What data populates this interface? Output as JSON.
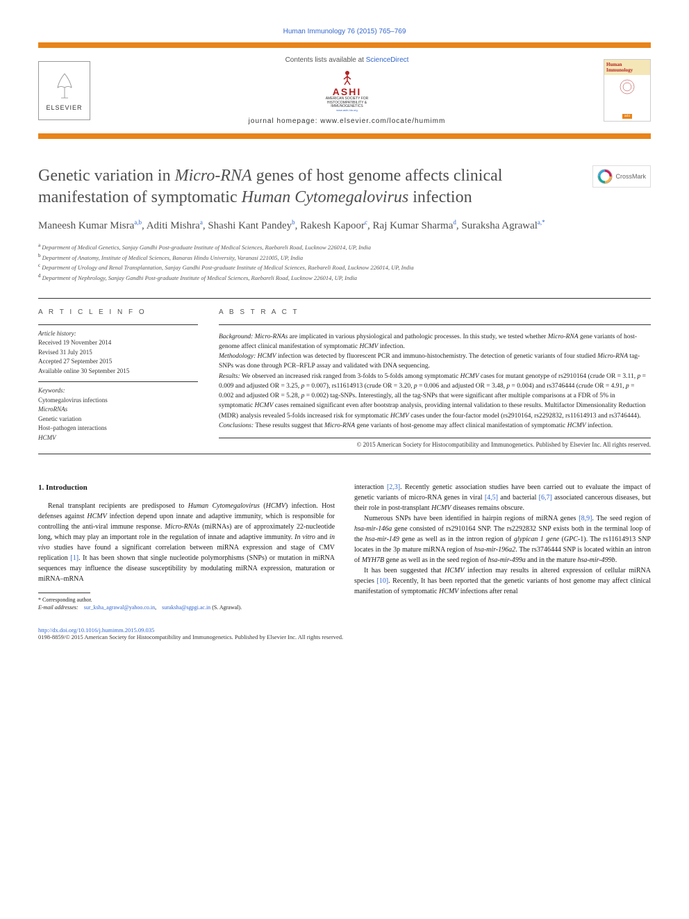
{
  "journal_ref": "Human Immunology 76 (2015) 765–769",
  "header": {
    "contents_prefix": "Contents lists available at ",
    "contents_link": "ScienceDirect",
    "ashi_name": "ASHI",
    "ashi_sub1": "AMERICAN SOCIETY FOR",
    "ashi_sub2": "HISTOCOMPATIBILITY &",
    "ashi_sub3": "IMMUNOGENETICS",
    "ashi_url": "www.ashi-hla.org",
    "homepage_label": "journal homepage: ",
    "homepage_url": "www.elsevier.com/locate/humimm",
    "elsevier_label": "ELSEVIER",
    "cover_title": "Human Immunology",
    "cover_ashi": "ashi"
  },
  "crossmark": "CrossMark",
  "title_html": "Genetic variation in <em>Micro-RNA</em> genes of host genome affects clinical manifestation of symptomatic <em>Human Cytomegalovirus</em> infection",
  "authors_html": "Maneesh Kumar Misra<sup>a,b</sup>, Aditi Mishra<sup>a</sup>, Shashi Kant Pandey<sup>b</sup>, Rakesh Kapoor<sup>c</sup>, Raj Kumar Sharma<sup>d</sup>, Suraksha Agrawal<sup>a,*</sup>",
  "affiliations": [
    {
      "sup": "a",
      "text": "Department of Medical Genetics, Sanjay Gandhi Post-graduate Institute of Medical Sciences, Raebareli Road, Lucknow 226014, UP, India"
    },
    {
      "sup": "b",
      "text": "Department of Anatomy, Institute of Medical Sciences, Banaras Hindu University, Varanasi 221005, UP, India"
    },
    {
      "sup": "c",
      "text": "Department of Urology and Renal Transplantation, Sanjay Gandhi Post-graduate Institute of Medical Sciences, Raebareli Road, Lucknow 226014, UP, India"
    },
    {
      "sup": "d",
      "text": "Department of Nephrology, Sanjay Gandhi Post-graduate Institute of Medical Sciences, Raebareli Road, Lucknow 226014, UP, India"
    }
  ],
  "info_heading": "A R T I C L E   I N F O",
  "history_label": "Article history:",
  "history": [
    "Received 19 November 2014",
    "Revised 31 July 2015",
    "Accepted 27 September 2015",
    "Available online 30 September 2015"
  ],
  "keywords_label": "Keywords:",
  "keywords": [
    "Cytomegalovirus infections",
    "MicroRNAs",
    "Genetic variation",
    "Host–pathogen interactions",
    "HCMV"
  ],
  "abstract_heading": "A B S T R A C T",
  "abstract_html": "<span class='para-label'>Background:</span> <em>Micro-RNAs</em> are implicated in various physiological and pathologic processes. In this study, we tested whether <em>Micro-RNA</em> gene variants of host-genome affect clinical manifestation of symptomatic <em>HCMV</em> infection.<br><span class='para-label'>Methodology:</span> <em>HCMV</em> infection was detected by fluorescent PCR and immuno-histochemistry. The detection of genetic variants of four studied <em>Micro-RNA</em> tag-SNPs was done through PCR–RFLP assay and validated with DNA sequencing.<br><span class='para-label'>Results:</span> We observed an increased risk ranged from 3-folds to 5-folds among symptomatic <em>HCMV</em> cases for mutant genotype of rs2910164 (crude OR = 3.11, <em>p</em> = 0.009 and adjusted OR = 3.25, <em>p</em> = 0.007), rs11614913 (crude OR = 3.20, <em>p</em> = 0.006 and adjusted OR = 3.48, <em>p</em> = 0.004) and rs3746444 (crude OR = 4.91, <em>p</em> = 0.002 and adjusted OR = 5.28, <em>p</em> = 0.002) tag-SNPs. Interestingly, all the tag-SNPs that were significant after multiple comparisons at a FDR of 5% in symptomatic <em>HCMV</em> cases remained significant even after bootstrap analysis, providing internal validation to these results. Multifactor Dimensionality Reduction (MDR) analysis revealed 5-folds increased risk for symptomatic <em>HCMV</em> cases under the four-factor model (rs2910164, rs2292832, rs11614913 and rs3746444).<br><span class='para-label'>Conclusions:</span> These results suggest that <em>Micro-RNA</em> gene variants of host-genome may affect clinical manifestation of symptomatic <em>HCMV</em> infection.",
  "abstract_copyright": "© 2015 American Society for Histocompatibility and Immunogenetics. Published by Elsevier Inc. All rights reserved.",
  "intro_heading": "1. Introduction",
  "intro_col1_html": "Renal transplant recipients are predisposed to <em>Human Cytomegalovirus</em> (<em>HCMV</em>) infection. Host defenses against <em>HCMV</em> infection depend upon innate and adaptive immunity, which is responsible for controlling the anti-viral immune response. <em>Micro-RNAs</em> (miRNAs) are of approximately 22-nucleotide long, which may play an important role in the regulation of innate and adaptive immunity. <em>In vitro</em> and <em>in vivo</em> studies have found a significant correlation between miRNA expression and stage of CMV replication <span class='ref-link'>[1]</span>. It has been shown that single nucleotide polymorphisms (SNPs) or mutation in miRNA sequences may influence the disease susceptibility by modulating miRNA expression, maturation or miRNA–mRNA",
  "intro_col2_p1_html": "interaction <span class='ref-link'>[2,3]</span>. Recently genetic association studies have been carried out to evaluate the impact of genetic variants of micro-RNA genes in viral <span class='ref-link'>[4,5]</span> and bacterial <span class='ref-link'>[6,7]</span> associated cancerous diseases, but their role in post-transplant <em>HCMV</em> diseases remains obscure.",
  "intro_col2_p2_html": "Numerous SNPs have been identified in hairpin regions of miRNA genes <span class='ref-link'>[8,9]</span>. The seed region of <em>hsa-mir-146a</em> gene consisted of rs2910164 SNP. The rs2292832 SNP exists both in the terminal loop of the <em>hsa-mir-149</em> gene as well as in the intron region of <em>glypican 1 gene</em> (<em>GPC</em>-1). The rs11614913 SNP locates in the 3p mature miRNA region of <em>hsa-mir-196a2</em>. The rs3746444 SNP is located within an intron of <em>MYH7B</em> gene as well as in the seed region of <em>hsa-mir-499a</em> and in the mature <em>hsa-mir-499b</em>.",
  "intro_col2_p3_html": "It has been suggested that <em>HCMV</em> infection may results in altered expression of cellular miRNA species <span class='ref-link'>[10]</span>. Recently, It has been reported that the genetic variants of host genome may affect clinical manifestation of symptomatic <em>HCMV</em> infections after renal",
  "footnote": {
    "corresponding": "* Corresponding author.",
    "email_label": "E-mail addresses:",
    "email1": "sur_ksha_agrawal@yahoo.co.in",
    "email2": "suraksha@sgpgi.ac.in",
    "author": "(S. Agrawal)."
  },
  "footer": {
    "doi": "http://dx.doi.org/10.1016/j.humimm.2015.09.035",
    "copyright": "0198-8859/© 2015 American Society for Histocompatibility and Immunogenetics. Published by Elsevier Inc. All rights reserved."
  },
  "colors": {
    "accent_orange": "#e8841a",
    "link_blue": "#3366cc",
    "text_gray": "#505050",
    "red": "#b22222"
  }
}
